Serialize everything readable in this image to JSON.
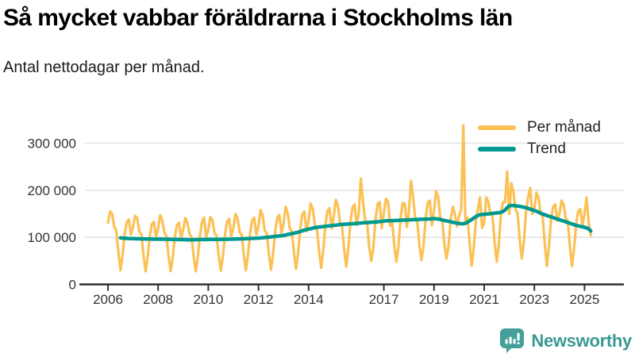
{
  "header": {
    "title": "Så mycket vabbar föräldrarna i Stockholms län",
    "subtitle": "Antal nettodagar per månad."
  },
  "legend": {
    "position": "top-right",
    "items": [
      {
        "label": "Per månad",
        "color": "#FBC155"
      },
      {
        "label": "Trend",
        "color": "#00998F"
      }
    ]
  },
  "branding": {
    "name": "Newsworthy",
    "color": "#3A9992",
    "icon": "bar-chart-speech-bubble-icon"
  },
  "chart_data": {
    "type": "line",
    "title": "Så mycket vabbar föräldrarna i Stockholms län",
    "ylabel": "Antal nettodagar per månad",
    "xlabel": "",
    "grid": "horizontal",
    "legend_position": "top-right",
    "ylim": [
      0,
      350000
    ],
    "x_range_years": [
      2006,
      2025.3
    ],
    "x_ticks": [
      {
        "value": 2006,
        "label": "2006"
      },
      {
        "value": 2008,
        "label": "2008"
      },
      {
        "value": 2010,
        "label": "2010"
      },
      {
        "value": 2012,
        "label": "2012"
      },
      {
        "value": 2014,
        "label": "2014"
      },
      {
        "value": 2017,
        "label": "2017"
      },
      {
        "value": 2019,
        "label": "2019"
      },
      {
        "value": 2021,
        "label": "2021"
      },
      {
        "value": 2023,
        "label": "2023"
      },
      {
        "value": 2025,
        "label": "2025"
      }
    ],
    "y_ticks": [
      {
        "value": 0,
        "label": "0"
      },
      {
        "value": 100000,
        "label": "100 000"
      },
      {
        "value": 200000,
        "label": "200 000"
      },
      {
        "value": 300000,
        "label": "300 000"
      }
    ],
    "series": [
      {
        "name": "Per månad",
        "color": "#FBC155",
        "line_width": 3.2,
        "cadence": "monthly",
        "start": "2006-01",
        "values_by_year": [
          [
            131000,
            155000,
            150000,
            122000,
            115000,
            68000,
            30000,
            62000,
            108000,
            132000,
            138000,
            106000
          ],
          [
            122000,
            146000,
            140000,
            112000,
            107000,
            62000,
            28000,
            58000,
            102000,
            128000,
            133000,
            101000
          ],
          [
            119000,
            147000,
            136000,
            110000,
            103000,
            60000,
            28000,
            57000,
            101000,
            126000,
            131000,
            99000
          ],
          [
            116000,
            141000,
            131000,
            107000,
            101000,
            59000,
            28000,
            58000,
            104000,
            132000,
            142000,
            101000
          ],
          [
            116000,
            143000,
            136000,
            109000,
            103000,
            60000,
            29000,
            60000,
            106000,
            133000,
            139000,
            103000
          ],
          [
            119000,
            150000,
            140000,
            111000,
            106000,
            62000,
            30000,
            62000,
            109000,
            136000,
            142000,
            106000
          ],
          [
            123000,
            158000,
            147000,
            114000,
            109000,
            64000,
            31000,
            64000,
            113000,
            141000,
            148000,
            109000
          ],
          [
            129000,
            165000,
            152000,
            119000,
            113000,
            67000,
            33000,
            67000,
            119000,
            149000,
            155000,
            113000
          ],
          [
            136000,
            172000,
            160000,
            126000,
            119000,
            71000,
            35000,
            71000,
            126000,
            156000,
            162000,
            119000
          ],
          [
            143000,
            180000,
            167000,
            132000,
            126000,
            75000,
            38000,
            75000,
            133000,
            163000,
            170000,
            126000
          ],
          [
            151000,
            225000,
            177000,
            138000,
            131000,
            79000,
            50000,
            79000,
            139000,
            171000,
            175000,
            120000
          ],
          [
            152000,
            182000,
            176000,
            125000,
            132000,
            81000,
            48000,
            81000,
            141000,
            173000,
            172000,
            122000
          ],
          [
            155000,
            220000,
            185000,
            140000,
            134000,
            82000,
            52000,
            82000,
            142000,
            174000,
            178000,
            126000
          ],
          [
            156000,
            198000,
            186000,
            141000,
            135000,
            83000,
            55000,
            83000,
            140000,
            165000,
            150000,
            123000
          ],
          [
            145000,
            160000,
            338000,
            135000,
            142000,
            90000,
            40000,
            75000,
            135000,
            160000,
            185000,
            120000
          ],
          [
            130000,
            185000,
            175000,
            150000,
            145000,
            88000,
            48000,
            85000,
            150000,
            175000,
            175000,
            240000
          ],
          [
            150000,
            215000,
            195000,
            160000,
            150000,
            95000,
            55000,
            90000,
            155000,
            185000,
            205000,
            150000
          ],
          [
            160000,
            195000,
            185000,
            150000,
            145000,
            85000,
            39000,
            80000,
            140000,
            165000,
            170000,
            135000
          ],
          [
            150000,
            178000,
            170000,
            140000,
            135000,
            80000,
            39000,
            75000,
            130000,
            155000,
            160000,
            125000
          ],
          [
            150000,
            185000,
            131000,
            104000
          ]
        ]
      },
      {
        "name": "Trend",
        "color": "#00998F",
        "line_width": 4.5,
        "cadence": "monthly",
        "start": "2006-07",
        "values_by_year": [
          [
            99000,
            98500,
            98000,
            98000,
            97500,
            97500
          ],
          [
            97300,
            97100,
            97000,
            96900,
            96800,
            96700,
            96600,
            96500,
            96400,
            96300,
            96200,
            96100
          ],
          [
            96200,
            96300,
            96200,
            96100,
            96000,
            95900,
            95800,
            95700,
            95600,
            95500,
            95400,
            95300
          ],
          [
            95200,
            95100,
            95000,
            95000,
            95000,
            95000,
            95100,
            95200,
            95300,
            95400,
            95500,
            95500
          ],
          [
            95500,
            95600,
            95600,
            95700,
            95700,
            95800,
            95800,
            95900,
            96000,
            96000,
            96100,
            96200
          ],
          [
            96300,
            96400,
            96500,
            96600,
            96800,
            97000,
            97200,
            97400,
            97600,
            97800,
            98000,
            98200
          ],
          [
            98500,
            98800,
            99200,
            99600,
            100000,
            100500,
            101000,
            101500,
            102000,
            102500,
            103000,
            103500
          ],
          [
            104000,
            105000,
            106000,
            107000,
            108000,
            109000,
            110000,
            111000,
            112500,
            114000,
            115500,
            116500
          ],
          [
            117500,
            118500,
            119500,
            120500,
            121500,
            122000,
            122500,
            123000,
            123500,
            124000,
            124500,
            125000
          ],
          [
            125500,
            126000,
            126500,
            127000,
            127500,
            128000,
            128200,
            128500,
            128800,
            129000,
            129300,
            129600
          ],
          [
            130000,
            130500,
            131000,
            131200,
            131500,
            131800,
            132000,
            132300,
            132600,
            133000,
            133500,
            134000
          ],
          [
            134500,
            135000,
            135200,
            135400,
            135600,
            135800,
            136000,
            136200,
            136400,
            136600,
            136800,
            137000
          ],
          [
            137200,
            137400,
            137600,
            137800,
            138000,
            138200,
            138400,
            138600,
            138800,
            139000,
            139200,
            139400
          ],
          [
            140000,
            139500,
            139000,
            138000,
            137000,
            136000,
            135000,
            134000,
            133000,
            132000,
            131000,
            130000
          ],
          [
            129500,
            129000,
            129000,
            130000,
            132000,
            135000,
            138000,
            141000,
            144000,
            146500,
            148000,
            148500
          ],
          [
            149000,
            149500,
            150000,
            150500,
            151000,
            151500,
            152000,
            152500,
            153500,
            155000,
            158000,
            163000
          ],
          [
            167000,
            168000,
            167500,
            167000,
            166500,
            166000,
            165000,
            164000,
            163000,
            161500,
            160000,
            158500
          ],
          [
            157000,
            155500,
            153500,
            151500,
            149500,
            148000,
            146500,
            145000,
            143500,
            142000,
            140500,
            139000
          ],
          [
            137500,
            136000,
            134500,
            133000,
            131500,
            130000,
            128500,
            127000,
            125500,
            124500,
            123500,
            122500
          ],
          [
            121500,
            120000,
            118000,
            113500
          ]
        ]
      }
    ],
    "style": {
      "gridline_color": "#E2E2E2",
      "axis_color": "#2F2F2F",
      "tick_label_color": "#333333",
      "background": "#FFFFFF"
    }
  }
}
